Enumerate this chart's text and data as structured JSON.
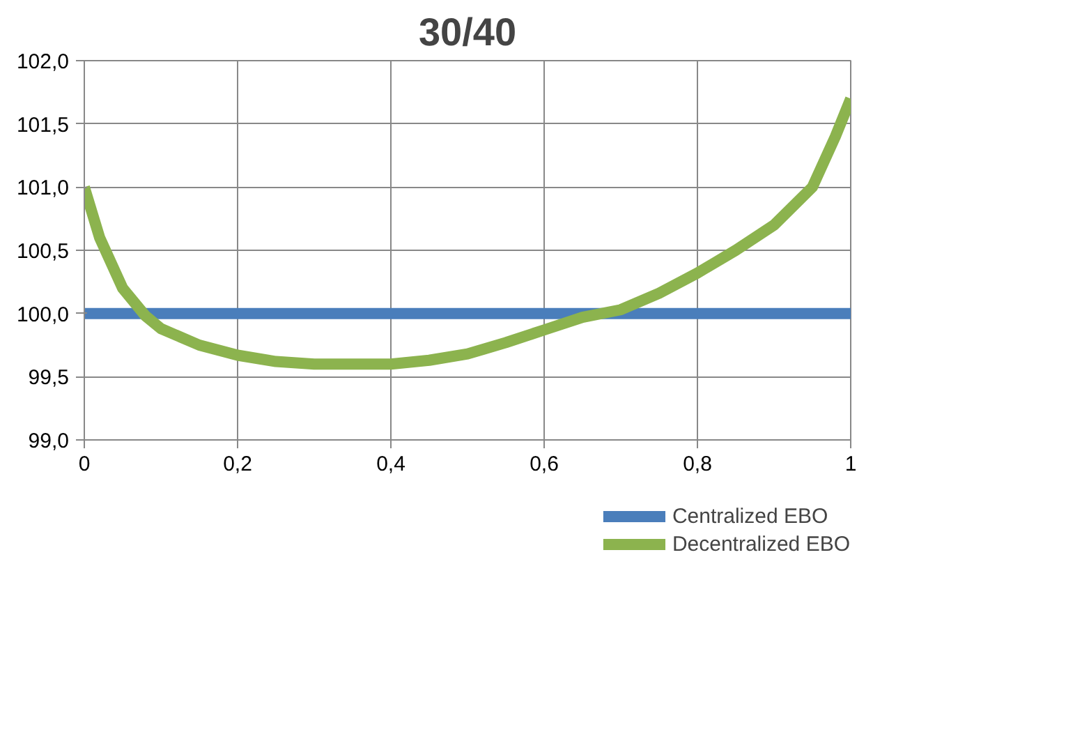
{
  "chart_data": {
    "type": "line",
    "title": "30/40",
    "x": [
      0,
      0.02,
      0.05,
      0.08,
      0.1,
      0.15,
      0.2,
      0.25,
      0.3,
      0.35,
      0.4,
      0.45,
      0.5,
      0.55,
      0.6,
      0.65,
      0.7,
      0.75,
      0.8,
      0.85,
      0.9,
      0.95,
      0.98,
      1.0
    ],
    "series": [
      {
        "name": "Centralized EBO",
        "color": "#4a7ebb",
        "x": [
          0,
          1
        ],
        "values": [
          100.0,
          100.0
        ]
      },
      {
        "name": "Decentralized EBO",
        "color": "#8cb34e",
        "values": [
          101.0,
          100.6,
          100.2,
          99.98,
          99.88,
          99.75,
          99.67,
          99.62,
          99.6,
          99.6,
          99.6,
          99.63,
          99.68,
          99.77,
          99.87,
          99.97,
          100.03,
          100.16,
          100.32,
          100.5,
          100.7,
          101.0,
          101.4,
          101.7
        ]
      }
    ],
    "xlim": [
      0,
      1
    ],
    "xticks": [
      0,
      {
        "value": 0.2,
        "label": "0,2"
      },
      {
        "value": 0.4,
        "label": "0,4"
      },
      {
        "value": 0.6,
        "label": "0,6"
      },
      {
        "value": 0.8,
        "label": "0,8"
      },
      1
    ],
    "ylim": [
      99,
      102
    ],
    "yticks": [
      {
        "value": 99,
        "label": "99,0"
      },
      {
        "value": 99.5,
        "label": "99,5"
      },
      {
        "value": 100,
        "label": "100,0"
      },
      {
        "value": 100.5,
        "label": "100,5"
      },
      {
        "value": 101,
        "label": "101,0"
      },
      {
        "value": 101.5,
        "label": "101,5"
      },
      {
        "value": 102,
        "label": "102,0"
      }
    ],
    "grid": true,
    "legend": "bottom right",
    "marker": "none",
    "line_style": "solid"
  }
}
